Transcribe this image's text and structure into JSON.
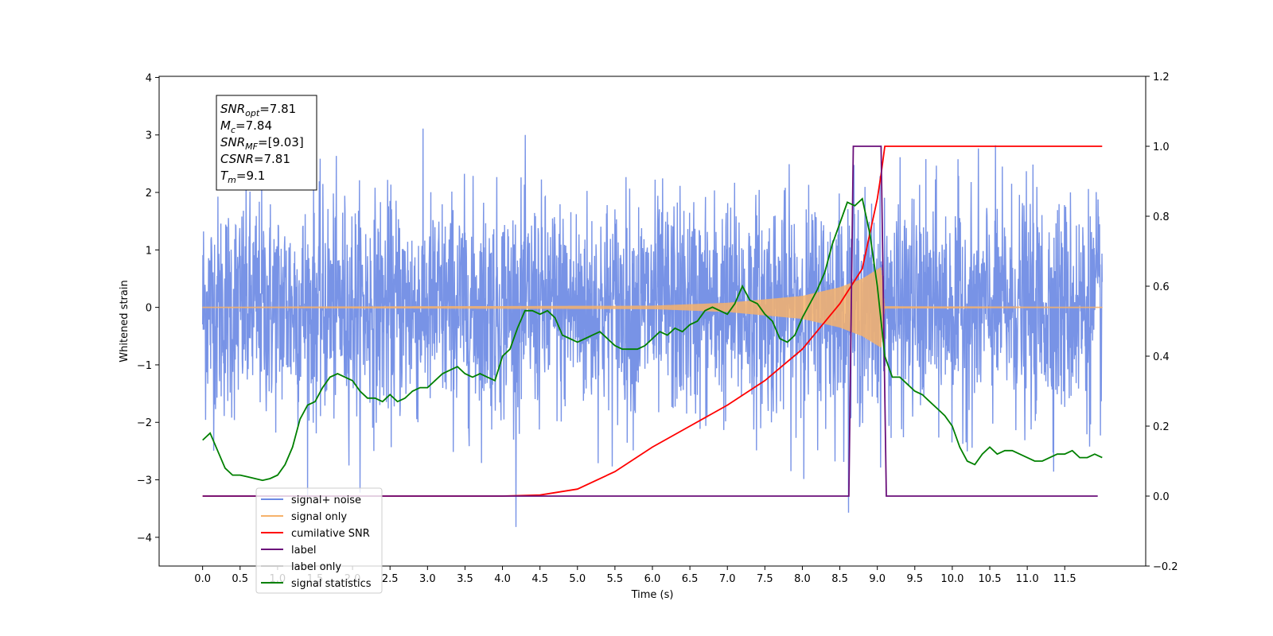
{
  "chart_data": {
    "type": "line",
    "title": "",
    "xlabel": "Time (s)",
    "ylabel": "Whitened strain",
    "xlim": [
      -0.58,
      12.58
    ],
    "ylim": [
      -4.5,
      4.02
    ],
    "y2lim": [
      -0.2,
      1.2
    ],
    "grid": false,
    "legend_position": "lower-left",
    "x_ticks": [
      "0.0",
      "0.5",
      "1.0",
      "1.5",
      "2.0",
      "2.5",
      "3.0",
      "3.5",
      "4.0",
      "4.5",
      "5.0",
      "5.5",
      "6.0",
      "6.5",
      "7.0",
      "7.5",
      "8.0",
      "8.5",
      "9.0",
      "9.5",
      "10.0",
      "10.5",
      "11.0",
      "11.5"
    ],
    "x_tick_values": [
      0,
      0.5,
      1,
      1.5,
      2,
      2.5,
      3,
      3.5,
      4,
      4.5,
      5,
      5.5,
      6,
      6.5,
      7,
      7.5,
      8,
      8.5,
      9,
      9.5,
      10,
      10.5,
      11,
      11.5
    ],
    "y_ticks": [
      "4",
      "3",
      "2",
      "1",
      "0",
      "−1",
      "−2",
      "−3",
      "−4"
    ],
    "y_tick_values": [
      4,
      3,
      2,
      1,
      0,
      -1,
      -2,
      -3,
      -4
    ],
    "y2_ticks": [
      "1.2",
      "1.0",
      "0.8",
      "0.6",
      "0.4",
      "0.2",
      "0.0",
      "−0.2"
    ],
    "y2_tick_values": [
      1.2,
      1.0,
      0.8,
      0.6,
      0.4,
      0.2,
      0.0,
      -0.2
    ],
    "stats_box": [
      {
        "base": "SNR",
        "sub": "opt",
        "rest": "=7.81"
      },
      {
        "base": "M",
        "sub": "c",
        "rest": "=7.84"
      },
      {
        "base": "SNR",
        "sub": "MF",
        "rest": "=[9.03]"
      },
      {
        "base": "CSNR",
        "sub": "",
        "rest": "=7.81"
      },
      {
        "base": "T",
        "sub": "m",
        "rest": "=9.1"
      }
    ],
    "series": [
      {
        "name": "signal+ noise",
        "color": "#6c8ae4",
        "axis": "left",
        "description_range": [
          -3.5,
          3.6
        ],
        "x_range": [
          0,
          12
        ]
      },
      {
        "name": "signal only",
        "color": "#f6b26b",
        "axis": "left",
        "envelope": {
          "x": [
            0,
            6.0,
            7.0,
            8.0,
            8.5,
            8.8,
            9.05,
            9.1,
            12.0
          ],
          "amp": [
            0.01,
            0.03,
            0.08,
            0.2,
            0.35,
            0.5,
            0.7,
            0.02,
            0.01
          ]
        }
      },
      {
        "name": "cumilative SNR",
        "color": "#ff0000",
        "axis": "right",
        "x": [
          0,
          4.0,
          4.5,
          5.0,
          5.5,
          6.0,
          6.5,
          7.0,
          7.5,
          8.0,
          8.5,
          8.8,
          9.0,
          9.05,
          9.1,
          12.0
        ],
        "y": [
          0,
          0,
          0.003,
          0.02,
          0.07,
          0.14,
          0.2,
          0.26,
          0.33,
          0.42,
          0.55,
          0.65,
          0.85,
          0.92,
          1.0,
          1.0
        ]
      },
      {
        "name": "label",
        "color": "#6a0f7a",
        "axis": "right",
        "x": [
          0,
          8.62,
          8.68,
          9.05,
          9.12,
          11.94
        ],
        "y": [
          0,
          0,
          1.0,
          1.0,
          0,
          0
        ]
      },
      {
        "name": "label only",
        "color": "#cccccc",
        "axis": "right",
        "x": [],
        "y": []
      },
      {
        "name": "signal statistics",
        "color": "#008000",
        "axis": "right",
        "x": [
          0.0,
          0.1,
          0.2,
          0.3,
          0.4,
          0.5,
          0.6,
          0.7,
          0.8,
          0.9,
          1.0,
          1.1,
          1.2,
          1.3,
          1.4,
          1.5,
          1.6,
          1.7,
          1.8,
          1.9,
          2.0,
          2.1,
          2.2,
          2.3,
          2.4,
          2.5,
          2.6,
          2.7,
          2.8,
          2.9,
          3.0,
          3.1,
          3.2,
          3.3,
          3.4,
          3.5,
          3.6,
          3.7,
          3.8,
          3.9,
          4.0,
          4.1,
          4.2,
          4.3,
          4.4,
          4.5,
          4.6,
          4.7,
          4.8,
          4.9,
          5.0,
          5.1,
          5.2,
          5.3,
          5.4,
          5.5,
          5.6,
          5.7,
          5.8,
          5.9,
          6.0,
          6.1,
          6.2,
          6.3,
          6.4,
          6.5,
          6.6,
          6.7,
          6.8,
          6.9,
          7.0,
          7.1,
          7.2,
          7.3,
          7.4,
          7.5,
          7.6,
          7.7,
          7.8,
          7.9,
          8.0,
          8.1,
          8.2,
          8.3,
          8.4,
          8.5,
          8.6,
          8.7,
          8.8,
          8.9,
          9.0,
          9.1,
          9.2,
          9.3,
          9.4,
          9.5,
          9.6,
          9.7,
          9.8,
          9.9,
          10.0,
          10.1,
          10.2,
          10.3,
          10.4,
          10.5,
          10.6,
          10.7,
          10.8,
          10.9,
          11.0,
          11.1,
          11.2,
          11.3,
          11.4,
          11.5,
          11.6,
          11.7,
          11.8,
          11.9,
          12.0
        ],
        "y": [
          0.16,
          0.18,
          0.13,
          0.08,
          0.06,
          0.06,
          0.055,
          0.05,
          0.045,
          0.05,
          0.06,
          0.09,
          0.14,
          0.22,
          0.26,
          0.27,
          0.31,
          0.34,
          0.35,
          0.34,
          0.33,
          0.3,
          0.28,
          0.28,
          0.27,
          0.29,
          0.27,
          0.28,
          0.3,
          0.31,
          0.31,
          0.33,
          0.35,
          0.36,
          0.37,
          0.35,
          0.34,
          0.35,
          0.34,
          0.33,
          0.4,
          0.42,
          0.48,
          0.53,
          0.53,
          0.52,
          0.53,
          0.51,
          0.46,
          0.45,
          0.44,
          0.45,
          0.46,
          0.47,
          0.45,
          0.43,
          0.42,
          0.42,
          0.42,
          0.43,
          0.45,
          0.47,
          0.46,
          0.48,
          0.47,
          0.49,
          0.5,
          0.53,
          0.54,
          0.53,
          0.52,
          0.55,
          0.6,
          0.56,
          0.55,
          0.52,
          0.5,
          0.45,
          0.44,
          0.46,
          0.51,
          0.55,
          0.59,
          0.64,
          0.72,
          0.78,
          0.84,
          0.83,
          0.85,
          0.75,
          0.6,
          0.4,
          0.34,
          0.34,
          0.32,
          0.3,
          0.29,
          0.27,
          0.25,
          0.23,
          0.2,
          0.14,
          0.1,
          0.09,
          0.12,
          0.14,
          0.12,
          0.13,
          0.13,
          0.12,
          0.11,
          0.1,
          0.1,
          0.11,
          0.12,
          0.12,
          0.13,
          0.11,
          0.11,
          0.12,
          0.11
        ]
      }
    ]
  }
}
